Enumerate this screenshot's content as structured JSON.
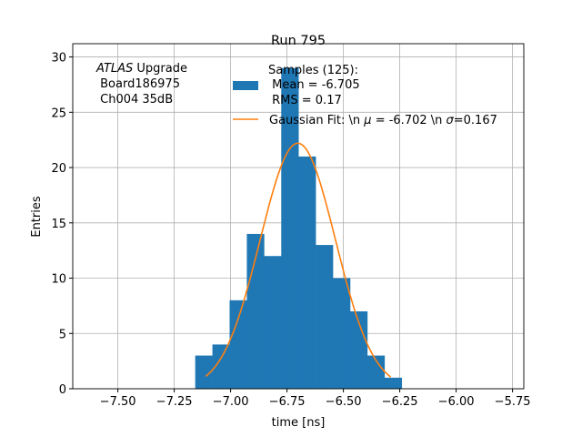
{
  "chart_data": {
    "type": "bar",
    "title": "Run 795",
    "xlabel": "time [ns]",
    "ylabel": "Entries",
    "xlim": [
      -7.7,
      -5.7
    ],
    "ylim": [
      0,
      31.2
    ],
    "grid": true,
    "xticks": [
      -7.5,
      -7.25,
      -7.0,
      -6.75,
      -6.5,
      -6.25,
      -6.0,
      -5.75
    ],
    "xtick_labels": [
      "−7.50",
      "−7.25",
      "−7.00",
      "−6.75",
      "−6.50",
      "−6.25",
      "−6.00",
      "−5.75"
    ],
    "yticks": [
      0,
      5,
      10,
      15,
      20,
      25,
      30
    ],
    "ytick_labels": [
      "0",
      "5",
      "10",
      "15",
      "20",
      "25",
      "30"
    ],
    "histogram": {
      "bin_start": -7.157,
      "bin_width": 0.0763,
      "counts": [
        3,
        4,
        8,
        14,
        12,
        29,
        21,
        13,
        10,
        7,
        3,
        1
      ],
      "color": "#1f77b4"
    },
    "fit": {
      "mu": -6.702,
      "sigma": 0.167,
      "amplitude": 22.2,
      "x_range": [
        -7.11,
        -6.29
      ],
      "color": "#ff7f0e"
    },
    "annotation": {
      "line1_italic": "ATLAS",
      "line1_rest": " Upgrade",
      "line2": " Board186975",
      "line3": " Ch004 35dB"
    },
    "legend": {
      "placement": "top-center",
      "entries": [
        {
          "lines": [
            "Samples (125):",
            " Mean = -6.705",
            " RMS = 0.17"
          ]
        },
        {
          "prefix": "Gaussian Fit: \\n ",
          "mu_symbol": "μ",
          "mid": " = -6.702 \\n ",
          "sigma_symbol": "σ",
          "suffix": "=0.167"
        }
      ]
    }
  }
}
